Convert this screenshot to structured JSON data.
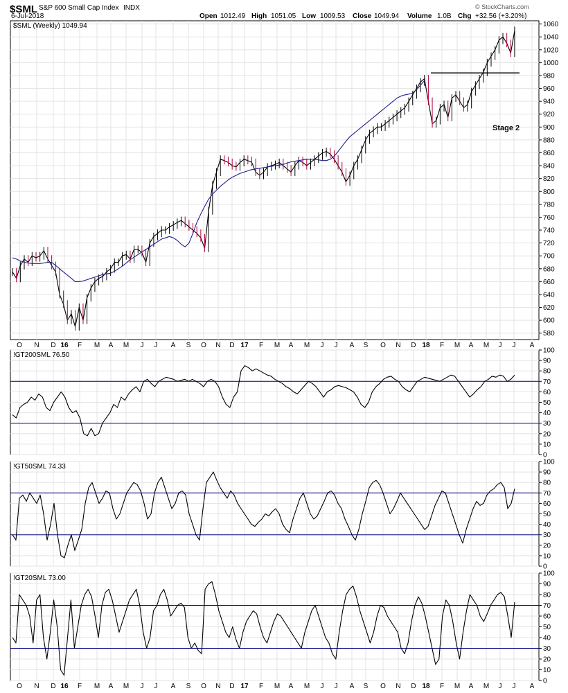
{
  "header": {
    "symbol": "$SML",
    "name": "S&P 600 Small Cap Index",
    "exchange": "INDX",
    "date": "6-Jul-2018",
    "open_label": "Open",
    "open": "1012.49",
    "high_label": "High",
    "high": "1051.05",
    "low_label": "Low",
    "low": "1009.53",
    "close_label": "Close",
    "close": "1049.94",
    "volume_label": "Volume",
    "volume": "1.0B",
    "chg_label": "Chg",
    "chg": "+32.56 (+3.20%)",
    "watermark": "© StockCharts.com"
  },
  "colors": {
    "price": "#000000",
    "down": "#b0003a",
    "ma": "#1f1f8f",
    "hline": "#000080",
    "grid": "#e3e3e3"
  },
  "chart_data": [
    {
      "type": "line",
      "legend": "$SML (Weekly) 1049.94",
      "annotation": "Stage 2",
      "ylim": [
        570,
        1065
      ],
      "yticks": [
        580,
        600,
        620,
        640,
        660,
        680,
        700,
        720,
        740,
        760,
        780,
        800,
        820,
        840,
        860,
        880,
        900,
        920,
        940,
        960,
        980,
        1000,
        1020,
        1040,
        1060
      ],
      "resistance_level": 984,
      "series": [
        {
          "values": [
            675,
            665,
            685,
            695,
            690,
            700,
            697,
            700,
            708,
            695,
            685,
            675,
            640,
            625,
            600,
            610,
            590,
            620,
            600,
            635,
            650,
            660,
            665,
            668,
            675,
            680,
            690,
            690,
            700,
            702,
            695,
            710,
            710,
            705,
            690,
            720,
            730,
            735,
            740,
            740,
            745,
            748,
            752,
            755,
            750,
            745,
            740,
            735,
            728,
            712,
            770,
            810,
            830,
            850,
            848,
            845,
            840,
            838,
            845,
            850,
            848,
            845,
            830,
            825,
            830,
            838,
            840,
            842,
            845,
            840,
            835,
            830,
            840,
            848,
            845,
            840,
            845,
            850,
            855,
            860,
            862,
            858,
            850,
            840,
            830,
            815,
            825,
            840,
            850,
            865,
            880,
            890,
            895,
            900,
            900,
            905,
            910,
            915,
            920,
            925,
            930,
            940,
            950,
            960,
            970,
            975,
            940,
            905,
            910,
            930,
            935,
            915,
            945,
            950,
            940,
            930,
            935,
            955,
            965,
            975,
            985,
            1000,
            1010,
            1020,
            1035,
            1040,
            1030,
            1015,
            1050
          ]
        },
        {
          "values": [
            697,
            695,
            692,
            690,
            689,
            688,
            688,
            688,
            689,
            690,
            690,
            685,
            680,
            675,
            670,
            665,
            660,
            660,
            661,
            663,
            665,
            667,
            669,
            671,
            672,
            673,
            676,
            680,
            684,
            689,
            694,
            698,
            702,
            706,
            710,
            714,
            718,
            722,
            726,
            728,
            730,
            728,
            724,
            718,
            714,
            720,
            735,
            752,
            765,
            777,
            788,
            796,
            802,
            808,
            813,
            818,
            822,
            825,
            828,
            830,
            832,
            834,
            835,
            836,
            837,
            838,
            839,
            840,
            841,
            842,
            844,
            846,
            847,
            848,
            849,
            850,
            850,
            850,
            849,
            848,
            848,
            850,
            855,
            862,
            870,
            878,
            885,
            890,
            895,
            900,
            905,
            910,
            915,
            920,
            925,
            930,
            935,
            940,
            945,
            948,
            950,
            951,
            953,
            958,
            965,
            972
          ]
        }
      ],
      "x_tick_labels": [
        "O",
        "N",
        "D",
        "16",
        "F",
        "M",
        "A",
        "M",
        "J",
        "J",
        "A",
        "S",
        "O",
        "N",
        "D",
        "17",
        "F",
        "M",
        "A",
        "M",
        "J",
        "J",
        "A",
        "S",
        "O",
        "N",
        "D",
        "18",
        "F",
        "M",
        "A",
        "M",
        "J",
        "J",
        "A"
      ]
    },
    {
      "type": "line",
      "legend": "!GT200SML 76.50",
      "ylim": [
        0,
        100
      ],
      "yticks": [
        0,
        10,
        20,
        30,
        40,
        50,
        60,
        70,
        80,
        90,
        100
      ],
      "hlines": [
        70,
        30
      ],
      "series": [
        {
          "values": [
            38,
            35,
            45,
            48,
            50,
            55,
            52,
            58,
            55,
            45,
            42,
            50,
            55,
            60,
            55,
            45,
            40,
            42,
            35,
            20,
            18,
            25,
            18,
            20,
            30,
            35,
            40,
            48,
            45,
            55,
            52,
            58,
            62,
            65,
            60,
            70,
            72,
            68,
            65,
            70,
            72,
            74,
            73,
            72,
            70,
            71,
            72,
            70,
            72,
            70,
            68,
            65,
            70,
            72,
            70,
            65,
            55,
            48,
            45,
            55,
            60,
            80,
            85,
            83,
            80,
            82,
            80,
            78,
            76,
            75,
            72,
            70,
            68,
            65,
            63,
            60,
            58,
            62,
            66,
            70,
            68,
            65,
            60,
            55,
            60,
            62,
            65,
            66,
            65,
            64,
            62,
            60,
            55,
            48,
            45,
            50,
            60,
            65,
            68,
            72,
            74,
            75,
            72,
            70,
            65,
            62,
            60,
            65,
            70,
            72,
            74,
            73,
            72,
            71,
            70,
            72,
            74,
            76,
            75,
            70,
            65,
            60,
            55,
            58,
            62,
            65,
            70,
            72,
            75,
            74,
            76,
            75,
            70,
            72,
            76
          ]
        }
      ],
      "x_tick_labels": []
    },
    {
      "type": "line",
      "legend": "!GT50SML 74.33",
      "ylim": [
        0,
        100
      ],
      "yticks": [
        0,
        10,
        20,
        30,
        40,
        50,
        60,
        70,
        80,
        90,
        100
      ],
      "hlines": [
        70,
        30
      ],
      "series": [
        {
          "values": [
            30,
            25,
            65,
            68,
            62,
            70,
            65,
            60,
            68,
            50,
            25,
            40,
            60,
            30,
            10,
            8,
            20,
            30,
            15,
            25,
            35,
            60,
            75,
            80,
            70,
            60,
            65,
            72,
            70,
            55,
            45,
            50,
            60,
            70,
            75,
            80,
            78,
            72,
            60,
            45,
            50,
            70,
            80,
            85,
            75,
            65,
            55,
            60,
            70,
            72,
            68,
            50,
            40,
            30,
            25,
            55,
            80,
            85,
            90,
            82,
            75,
            70,
            65,
            72,
            68,
            60,
            55,
            50,
            45,
            40,
            38,
            42,
            45,
            50,
            48,
            52,
            55,
            50,
            40,
            35,
            32,
            45,
            55,
            65,
            70,
            60,
            50,
            45,
            48,
            55,
            62,
            70,
            72,
            68,
            60,
            55,
            45,
            38,
            30,
            25,
            35,
            50,
            62,
            75,
            80,
            82,
            78,
            70,
            60,
            50,
            55,
            62,
            70,
            65,
            60,
            55,
            50,
            45,
            40,
            35,
            38,
            48,
            58,
            65,
            72,
            70,
            60,
            50,
            40,
            30,
            22,
            35,
            45,
            55,
            62,
            58,
            60,
            68,
            72,
            74,
            78,
            80,
            75,
            55,
            60,
            74
          ]
        }
      ],
      "x_tick_labels": []
    },
    {
      "type": "line",
      "legend": "!GT20SML 73.00",
      "ylim": [
        0,
        100
      ],
      "yticks": [
        0,
        10,
        20,
        30,
        40,
        50,
        60,
        70,
        80,
        90,
        100
      ],
      "hlines": [
        70,
        30
      ],
      "series": [
        {
          "values": [
            40,
            35,
            80,
            75,
            70,
            60,
            35,
            75,
            80,
            40,
            20,
            45,
            75,
            50,
            10,
            5,
            40,
            75,
            30,
            50,
            70,
            80,
            85,
            78,
            60,
            40,
            70,
            82,
            85,
            75,
            60,
            45,
            55,
            65,
            75,
            80,
            85,
            70,
            45,
            30,
            40,
            65,
            70,
            80,
            85,
            75,
            60,
            65,
            70,
            72,
            68,
            40,
            30,
            35,
            28,
            25,
            85,
            90,
            92,
            80,
            65,
            55,
            45,
            40,
            50,
            38,
            30,
            45,
            55,
            60,
            65,
            62,
            50,
            40,
            35,
            45,
            55,
            62,
            60,
            55,
            50,
            45,
            40,
            35,
            30,
            45,
            55,
            65,
            70,
            60,
            50,
            40,
            35,
            25,
            20,
            45,
            65,
            80,
            85,
            88,
            78,
            65,
            55,
            45,
            35,
            45,
            60,
            70,
            68,
            60,
            55,
            50,
            45,
            30,
            25,
            35,
            55,
            70,
            78,
            72,
            60,
            45,
            30,
            15,
            20,
            60,
            75,
            70,
            55,
            35,
            20,
            45,
            65,
            80,
            75,
            70,
            60,
            55,
            62,
            70,
            75,
            80,
            82,
            78,
            60,
            40,
            73
          ]
        }
      ],
      "x_tick_labels": [
        "O",
        "N",
        "D",
        "16",
        "F",
        "M",
        "A",
        "M",
        "J",
        "J",
        "A",
        "S",
        "O",
        "N",
        "D",
        "17",
        "F",
        "M",
        "A",
        "M",
        "J",
        "J",
        "A",
        "S",
        "O",
        "N",
        "D",
        "18",
        "F",
        "M",
        "A",
        "M",
        "J",
        "J",
        "A"
      ]
    }
  ]
}
